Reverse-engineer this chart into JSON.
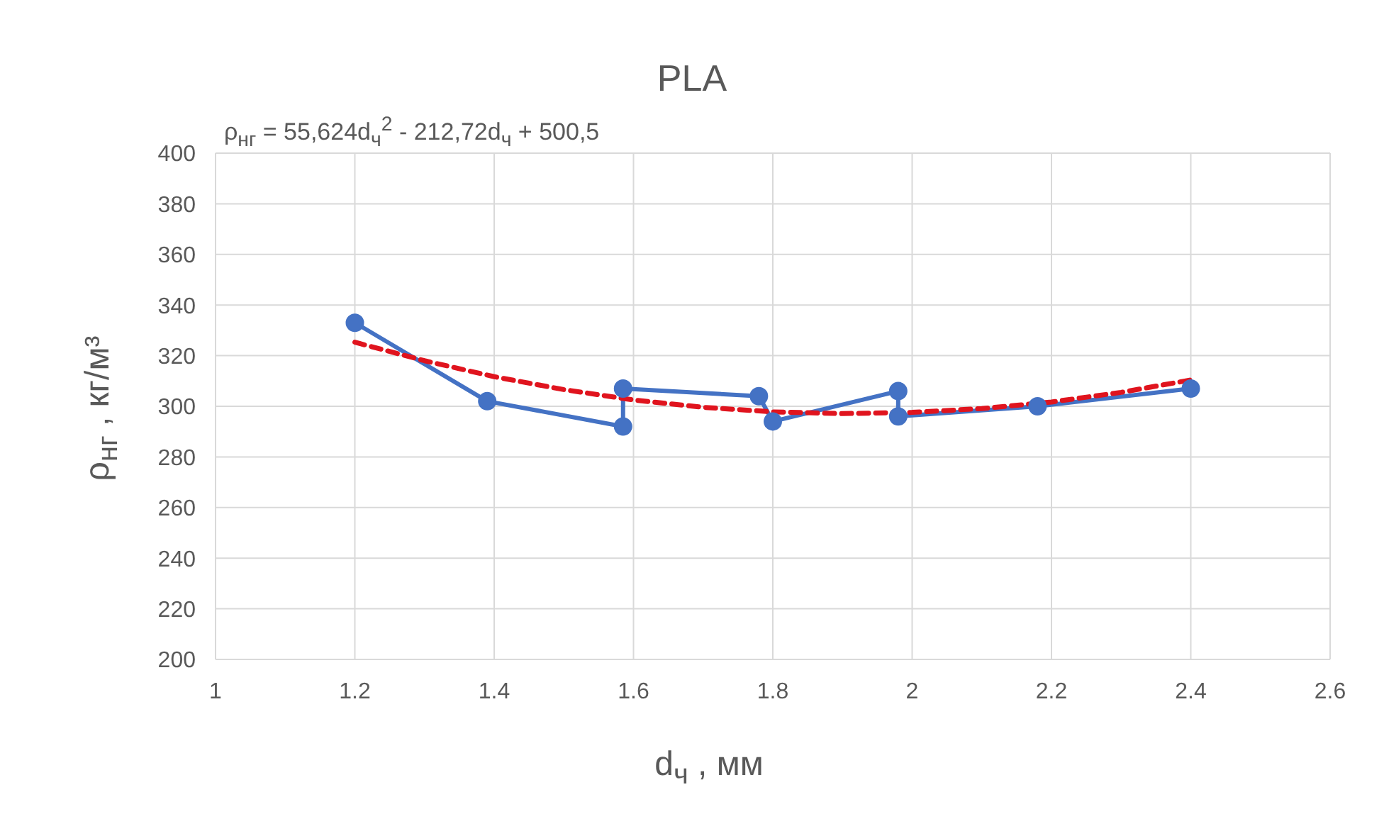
{
  "chart_data": {
    "type": "line",
    "title": "PLA",
    "xlabel": "d$_{ч}$ , мм",
    "ylabel": "ρ$_{нг}$ , кг/м³",
    "annotations": [
      "ρ$_{нг}$ = 55,624d$_{ч}$$^{2}$ - 212,72d$_{ч}$ + 500,5"
    ],
    "xlim": [
      1,
      2.6
    ],
    "xticks": [
      1,
      1.2,
      1.4,
      1.6,
      1.8,
      2,
      2.2,
      2.4,
      2.6
    ],
    "ylim": [
      200,
      400
    ],
    "yticks": [
      200,
      220,
      240,
      260,
      280,
      300,
      320,
      340,
      360,
      380,
      400
    ],
    "grid": true,
    "series": [
      {
        "color": "#4472c4",
        "marker": "circle",
        "line_style": "solid",
        "x": [
          1.2,
          1.39,
          1.585,
          1.585,
          1.78,
          1.8,
          1.98,
          1.98,
          2.18,
          2.4
        ],
        "values": [
          333,
          302,
          292,
          307,
          304,
          294,
          306,
          296,
          300,
          307
        ]
      },
      {
        "color": "#e0141e",
        "marker": "none",
        "line_style": "dashed",
        "x": [
          1.2,
          1.3,
          1.4,
          1.5,
          1.6,
          1.7,
          1.8,
          1.9,
          2.0,
          2.1,
          2.2,
          2.3,
          2.4
        ],
        "values": [
          325.3,
          318.0,
          311.7,
          306.6,
          302.5,
          299.6,
          297.8,
          297.1,
          297.6,
          299.1,
          301.7,
          305.5,
          310.4
        ]
      }
    ]
  }
}
